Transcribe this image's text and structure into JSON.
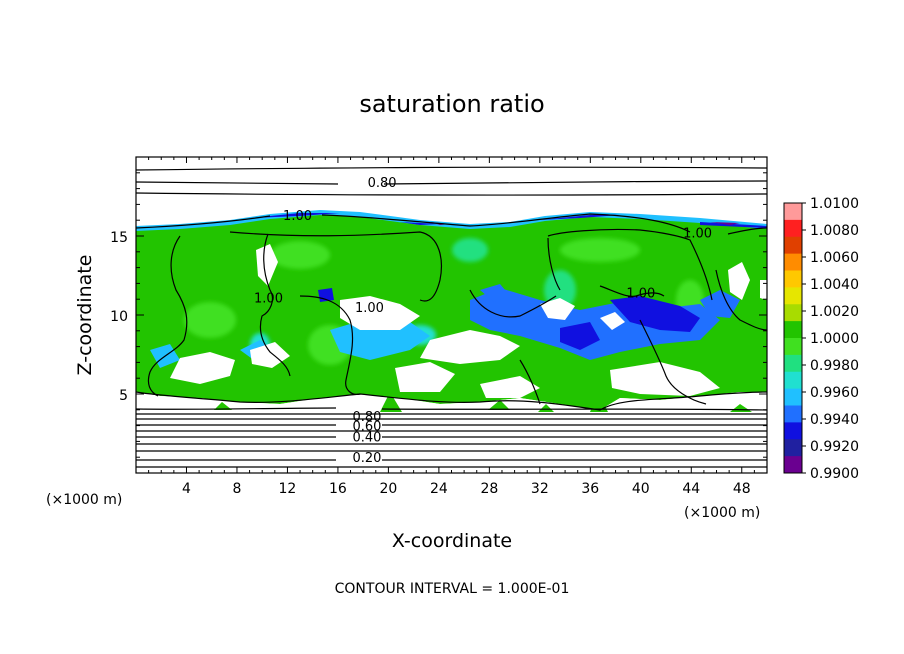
{
  "chart_data": {
    "type": "heatmap",
    "title": "saturation ratio",
    "xlabel": "X-coordinate",
    "ylabel": "Z-coordinate",
    "x_unit_left": "(×1000 m)",
    "x_unit_right": "(×1000 m)",
    "xlim": [
      0,
      50
    ],
    "ylim": [
      0,
      20
    ],
    "x_ticks": [
      4,
      8,
      12,
      16,
      20,
      24,
      28,
      32,
      36,
      40,
      44,
      48
    ],
    "x_tick_labels": [
      "4",
      "8",
      "12",
      "16",
      "20",
      "24",
      "28",
      "32",
      "36",
      "40",
      "44",
      "48"
    ],
    "y_ticks": [
      5,
      10,
      15
    ],
    "y_tick_labels": [
      "5",
      "10",
      "15"
    ],
    "colorbar": {
      "min": 0.99,
      "max": 1.01,
      "labels": [
        "1.0100",
        "1.0080",
        "1.0060",
        "1.0040",
        "1.0020",
        "1.0000",
        "0.9980",
        "0.9960",
        "0.9940",
        "0.9920",
        "0.9900"
      ],
      "colors": [
        "#ff9a9a",
        "#ff2020",
        "#e04000",
        "#ff8c00",
        "#ffc800",
        "#e6e600",
        "#a8dc00",
        "#22c400",
        "#40e020",
        "#20e080",
        "#20e0d0",
        "#20c0ff",
        "#2070ff",
        "#1010e0",
        "#2020a0",
        "#6a0090"
      ]
    },
    "contour_interval_text": "CONTOUR INTERVAL = 1.000E-01",
    "contour_labels": [
      {
        "text": "0.80",
        "x": 19.5,
        "z": 18.1
      },
      {
        "text": "1.00",
        "x": 12.8,
        "z": 16.0
      },
      {
        "text": "1.00",
        "x": 44.5,
        "z": 14.9
      },
      {
        "text": "1.00",
        "x": 18.5,
        "z": 10.2
      },
      {
        "text": "1.00",
        "x": 10.5,
        "z": 10.8
      },
      {
        "text": "1.00",
        "x": 40.0,
        "z": 11.1
      },
      {
        "text": "0.80",
        "x": 18.3,
        "z": 3.3
      },
      {
        "text": "0.60",
        "x": 18.3,
        "z": 2.7
      },
      {
        "text": "0.40",
        "x": 18.3,
        "z": 2.0
      },
      {
        "text": "0.20",
        "x": 18.3,
        "z": 0.7
      }
    ],
    "lower_contour_levels_z": [
      4.2,
      3.75,
      3.35,
      2.95,
      2.55,
      2.15,
      1.75,
      1.35,
      0.85,
      0.45
    ],
    "upper_contour_levels_z": [
      19.3,
      18.1,
      17.2
    ],
    "cloud_top_z": 15.5,
    "cloud_base_z": 4.4
  }
}
